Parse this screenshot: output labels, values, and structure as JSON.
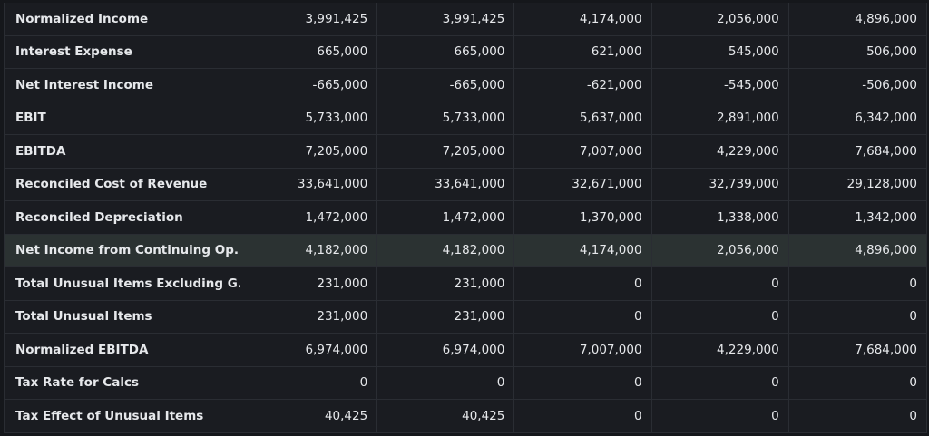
{
  "rows": [
    {
      "label": "Normalized Income",
      "values": [
        "3,991,425",
        "3,991,425",
        "4,174,000",
        "2,056,000",
        "4,896,000"
      ]
    },
    {
      "label": "Interest Expense",
      "values": [
        "665,000",
        "665,000",
        "621,000",
        "545,000",
        "506,000"
      ]
    },
    {
      "label": "Net Interest Income",
      "values": [
        "-665,000",
        "-665,000",
        "-621,000",
        "-545,000",
        "-506,000"
      ]
    },
    {
      "label": "EBIT",
      "values": [
        "5,733,000",
        "5,733,000",
        "5,637,000",
        "2,891,000",
        "6,342,000"
      ]
    },
    {
      "label": "EBITDA",
      "values": [
        "7,205,000",
        "7,205,000",
        "7,007,000",
        "4,229,000",
        "7,684,000"
      ]
    },
    {
      "label": "Reconciled Cost of Revenue",
      "values": [
        "33,641,000",
        "33,641,000",
        "32,671,000",
        "32,739,000",
        "29,128,000"
      ]
    },
    {
      "label": "Reconciled Depreciation",
      "values": [
        "1,472,000",
        "1,472,000",
        "1,370,000",
        "1,338,000",
        "1,342,000"
      ]
    },
    {
      "label": "Net Income from Continuing Op...",
      "values": [
        "4,182,000",
        "4,182,000",
        "4,174,000",
        "2,056,000",
        "4,896,000"
      ],
      "highlighted": true
    },
    {
      "label": "Total Unusual Items Excluding G...",
      "values": [
        "231,000",
        "231,000",
        "0",
        "0",
        "0"
      ]
    },
    {
      "label": "Total Unusual Items",
      "values": [
        "231,000",
        "231,000",
        "0",
        "0",
        "0"
      ]
    },
    {
      "label": "Normalized EBITDA",
      "values": [
        "6,974,000",
        "6,974,000",
        "7,007,000",
        "4,229,000",
        "7,684,000"
      ]
    },
    {
      "label": "Tax Rate for Calcs",
      "values": [
        "0",
        "0",
        "0",
        "0",
        "0"
      ]
    },
    {
      "label": "Tax Effect of Unusual Items",
      "values": [
        "40,425",
        "40,425",
        "0",
        "0",
        "0"
      ]
    }
  ],
  "colors": {
    "background": "#1a1c21",
    "highlight_row": "#2b3232",
    "text": "#e6e8eb",
    "grid": "#2a2d33"
  }
}
